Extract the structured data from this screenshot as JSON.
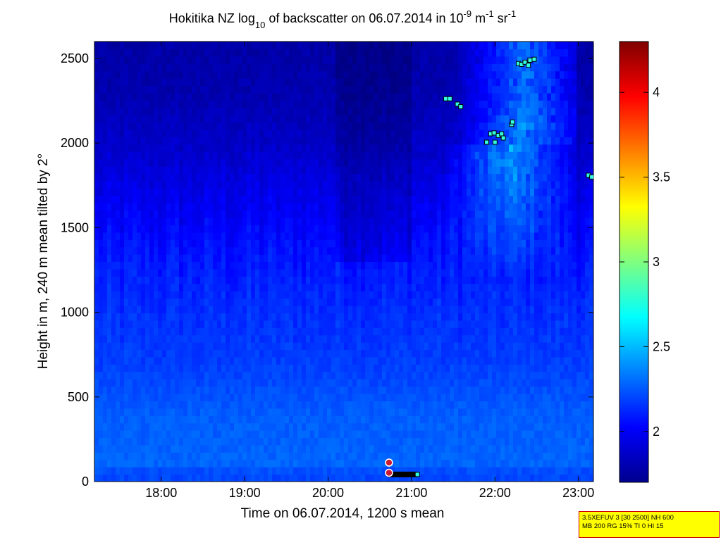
{
  "chart_data": {
    "type": "heatmap",
    "title": {
      "prefix": "Hokitika NZ log",
      "sub": "10",
      "middle": " of backscatter on 06.07.2014 in 10",
      "sup1": "-9",
      "unit1": " m",
      "sup2": "-1",
      "unit2": " sr",
      "sup3": "-1"
    },
    "xlabel": "Time on 06.07.2014, 1200 s mean",
    "ylabel": "Height in m, 240 m mean tilted by 2°",
    "xlim": [
      17.2,
      23.18
    ],
    "ylim": [
      0,
      2600
    ],
    "x_ticks": [
      {
        "value": 18,
        "label": "18:00"
      },
      {
        "value": 19,
        "label": "19:00"
      },
      {
        "value": 20,
        "label": "20:00"
      },
      {
        "value": 21,
        "label": "21:00"
      },
      {
        "value": 22,
        "label": "22:00"
      },
      {
        "value": 23,
        "label": "23:00"
      }
    ],
    "y_ticks": [
      {
        "value": 0,
        "label": "0"
      },
      {
        "value": 500,
        "label": "500"
      },
      {
        "value": 1000,
        "label": "1000"
      },
      {
        "value": 1500,
        "label": "1500"
      },
      {
        "value": 2000,
        "label": "2000"
      },
      {
        "value": 2500,
        "label": "2500"
      }
    ],
    "colorbar": {
      "range": [
        1.7,
        4.3
      ],
      "colormap": "jet",
      "ticks": [
        {
          "value": 2,
          "label": "2"
        },
        {
          "value": 2.5,
          "label": "2.5"
        },
        {
          "value": 3,
          "label": "3"
        },
        {
          "value": 3.5,
          "label": "3.5"
        },
        {
          "value": 4,
          "label": "4"
        }
      ]
    },
    "field_description": {
      "base_level_by_height": [
        {
          "h": 0,
          "v": 2.12
        },
        {
          "h": 100,
          "v": 2.28
        },
        {
          "h": 400,
          "v": 2.26
        },
        {
          "h": 700,
          "v": 2.18
        },
        {
          "h": 1000,
          "v": 2.14
        },
        {
          "h": 1300,
          "v": 2.08
        },
        {
          "h": 1700,
          "v": 1.97
        },
        {
          "h": 2000,
          "v": 1.88
        },
        {
          "h": 2300,
          "v": 1.82
        },
        {
          "h": 2600,
          "v": 1.8
        }
      ],
      "plume": {
        "time_start": 21.3,
        "time_end": 23.0,
        "height_top": 2500,
        "peak_value": 2.55
      }
    },
    "cloud_markers": [
      {
        "t": 21.41,
        "h": 2262
      },
      {
        "t": 21.46,
        "h": 2262
      },
      {
        "t": 21.55,
        "h": 2230
      },
      {
        "t": 21.59,
        "h": 2215
      },
      {
        "t": 21.9,
        "h": 2005
      },
      {
        "t": 21.95,
        "h": 2055
      },
      {
        "t": 22.0,
        "h": 2005
      },
      {
        "t": 21.99,
        "h": 2060
      },
      {
        "t": 22.04,
        "h": 2045
      },
      {
        "t": 22.08,
        "h": 2055
      },
      {
        "t": 22.1,
        "h": 2030
      },
      {
        "t": 22.2,
        "h": 2110
      },
      {
        "t": 22.21,
        "h": 2125
      },
      {
        "t": 22.28,
        "h": 2470
      },
      {
        "t": 22.32,
        "h": 2465
      },
      {
        "t": 22.36,
        "h": 2478
      },
      {
        "t": 22.4,
        "h": 2460
      },
      {
        "t": 22.42,
        "h": 2490
      },
      {
        "t": 22.47,
        "h": 2495
      },
      {
        "t": 23.12,
        "h": 1810
      },
      {
        "t": 23.16,
        "h": 1800
      }
    ],
    "ground_markers": {
      "bar": {
        "t_start": 20.72,
        "t_end": 21.07,
        "h": 42
      },
      "circles": [
        {
          "t": 20.73,
          "h": 112
        },
        {
          "t": 20.73,
          "h": 52
        }
      ],
      "end_square": {
        "t": 21.07,
        "h": 42
      }
    }
  },
  "info_box": {
    "line1": "3.5XEFUV 3 [30 2500] NH 600",
    "line2": "MB 200 RG 15% TI 0 HI 15",
    "background": "#ffff00",
    "border": "#cc0000"
  }
}
